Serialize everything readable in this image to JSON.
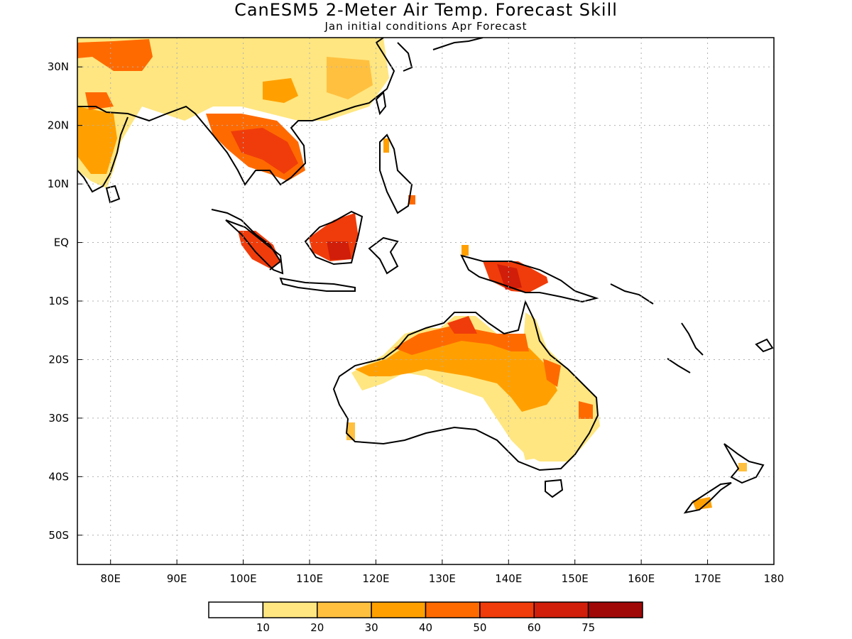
{
  "title": "CanESM5 2-Meter Air Temp. Forecast Skill",
  "subtitle": "Jan initial conditions  Apr Forecast",
  "map": {
    "projection": "lon-lat",
    "lon_range": [
      75,
      180
    ],
    "lat_range": [
      -55,
      35
    ],
    "grid": true,
    "x_ticks": [
      "80E",
      "90E",
      "100E",
      "110E",
      "120E",
      "130E",
      "140E",
      "150E",
      "160E",
      "170E",
      "180"
    ],
    "y_ticks": [
      "30N",
      "20N",
      "10N",
      "EQ",
      "10S",
      "20S",
      "30S",
      "40S",
      "50S"
    ]
  },
  "colorbar": {
    "boundaries": [
      "10",
      "20",
      "30",
      "40",
      "50",
      "60",
      "75"
    ],
    "colors": [
      "#ffffff",
      "#ffe680",
      "#ffc040",
      "#ffa000",
      "#ff6a00",
      "#f03c0a",
      "#d01e0a",
      "#a00808"
    ]
  },
  "colors": {
    "land_outline": "#000000",
    "grid": "#b0b0b0"
  }
}
